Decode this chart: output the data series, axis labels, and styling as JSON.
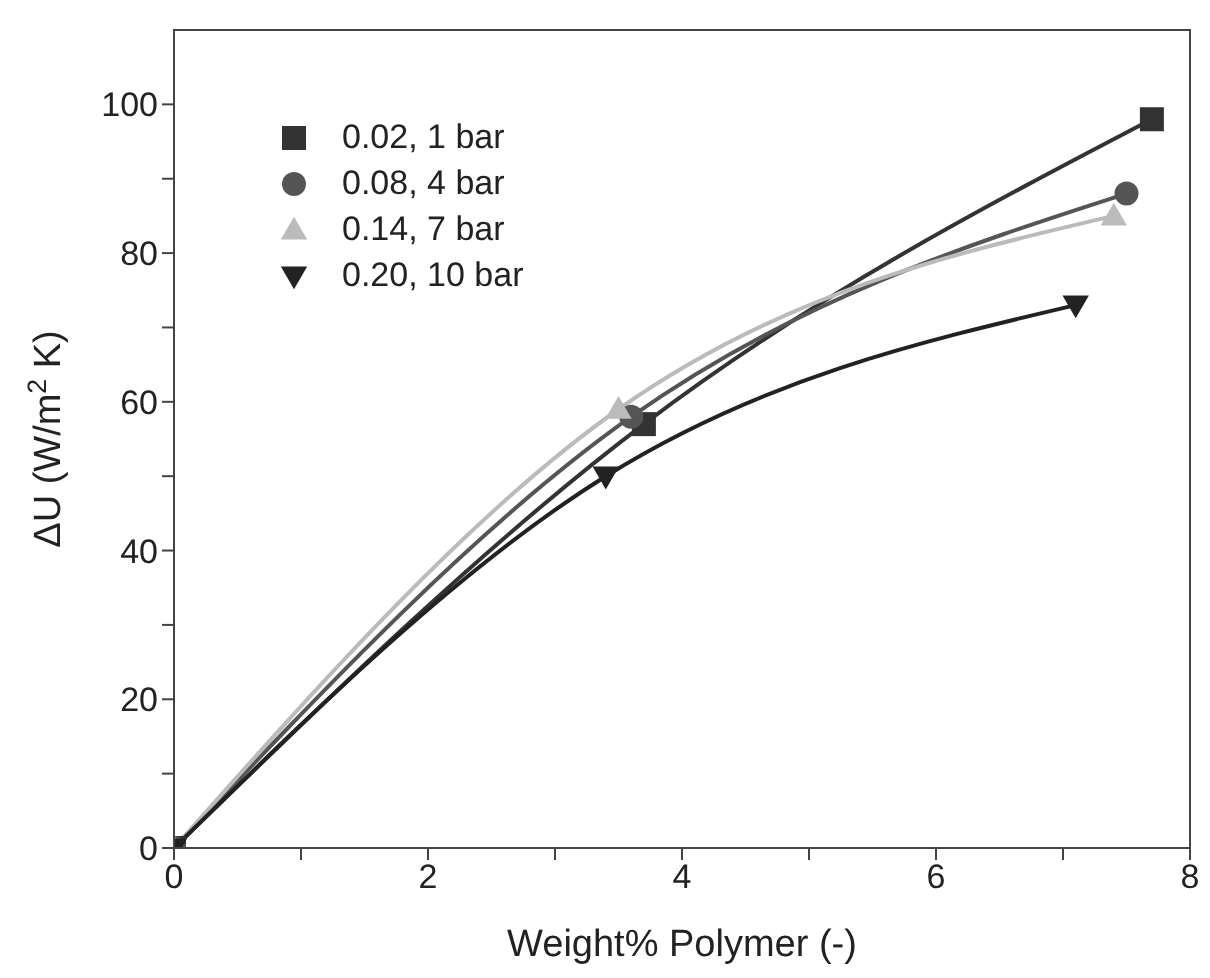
{
  "chart_data": {
    "type": "line",
    "xlabel": "Weight% Polymer (-)",
    "ylabel": "ΔU (W/m$^{2}$ K)",
    "xlim": [
      0,
      8
    ],
    "xticks": [
      0,
      {
        "value": 1,
        "label": null
      },
      2,
      {
        "value": 3,
        "label": null
      },
      4,
      {
        "value": 5,
        "label": null
      },
      6,
      {
        "value": 7,
        "label": null
      },
      8
    ],
    "ylim": [
      0,
      110
    ],
    "yticks": [
      0,
      {
        "value": 10,
        "label": null
      },
      20,
      {
        "value": 30,
        "label": null
      },
      40,
      {
        "value": 50,
        "label": null
      },
      60,
      {
        "value": 70,
        "label": null
      },
      80,
      {
        "value": 90,
        "label": null
      },
      100
    ],
    "legend": "top left",
    "series": [
      {
        "name": "0.02, 1 bar",
        "color": "#333333",
        "marker": "square",
        "x": [
          0,
          3.7,
          7.7
        ],
        "values": [
          0,
          57,
          98
        ]
      },
      {
        "name": "0.08, 4 bar",
        "color": "#555555",
        "marker": "circle",
        "x": [
          0,
          3.6,
          7.5
        ],
        "values": [
          0,
          58,
          88
        ]
      },
      {
        "name": "0.14, 7 bar",
        "color": "#bbbbbb",
        "marker": "triangle",
        "x": [
          0,
          3.5,
          7.4
        ],
        "values": [
          0,
          59,
          85
        ]
      },
      {
        "name": "0.20, 10 bar",
        "color": "#222222",
        "marker": "triangle-down",
        "x": [
          0,
          3.4,
          7.1
        ],
        "values": [
          0,
          50,
          73
        ]
      }
    ]
  }
}
